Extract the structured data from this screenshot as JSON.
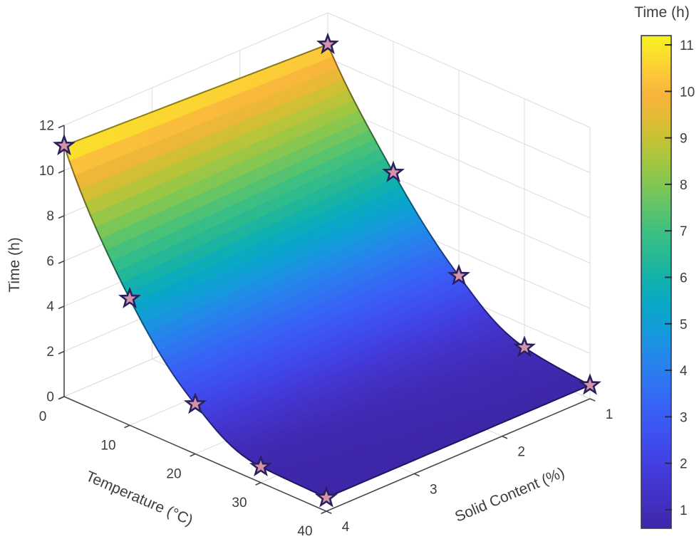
{
  "chart_data": {
    "type": "surface3d",
    "title": "",
    "xlabel": "Temperature (°C)",
    "ylabel": "Solid Content (%)",
    "zlabel": "Time (h)",
    "colorbar_title": "Time (h)",
    "x_range": [
      0,
      40
    ],
    "y_range": [
      1,
      4
    ],
    "z_range": [
      0,
      12
    ],
    "x_ticks": [
      0,
      10,
      20,
      30,
      40
    ],
    "y_ticks": [
      4,
      3,
      2,
      1
    ],
    "z_ticks": [
      0,
      2,
      4,
      6,
      8,
      10,
      12
    ],
    "colorbar_ticks": [
      1,
      2,
      3,
      4,
      5,
      6,
      7,
      8,
      9,
      10,
      11
    ],
    "color_limits": [
      0.6,
      11.2
    ],
    "grid": true,
    "legend_position": "colorbar-right",
    "temperature": [
      0,
      10,
      20,
      30,
      40
    ],
    "series": [
      {
        "name": "solid_content_4",
        "solid_content": 4,
        "time_h": [
          11.1,
          5.6,
          2.2,
          0.7,
          0.6
        ]
      },
      {
        "name": "solid_content_1",
        "solid_content": 1,
        "time_h": [
          10.6,
          6.2,
          2.9,
          1.0,
          0.6
        ]
      }
    ],
    "marker": {
      "shape": "pentagram",
      "fill": "#d593aa",
      "edge": "#2a2060"
    },
    "colormap": "parula",
    "colormap_stops": [
      [
        0.0,
        "#3e26a8"
      ],
      [
        0.05,
        "#432fc0"
      ],
      [
        0.1,
        "#4338d5"
      ],
      [
        0.15,
        "#4145e7"
      ],
      [
        0.2,
        "#3d54f3"
      ],
      [
        0.25,
        "#3764f5"
      ],
      [
        0.3,
        "#2e76f0"
      ],
      [
        0.35,
        "#2488ea"
      ],
      [
        0.4,
        "#149bdb"
      ],
      [
        0.45,
        "#09a7c8"
      ],
      [
        0.5,
        "#10b0b0"
      ],
      [
        0.55,
        "#26b894"
      ],
      [
        0.6,
        "#3cbf83"
      ],
      [
        0.65,
        "#5ec46a"
      ],
      [
        0.7,
        "#84c751"
      ],
      [
        0.75,
        "#a8c63f"
      ],
      [
        0.8,
        "#cbc134"
      ],
      [
        0.84,
        "#e7ba35"
      ],
      [
        0.88,
        "#f8b43c"
      ],
      [
        0.92,
        "#fcc63a"
      ],
      [
        0.96,
        "#fbde2d"
      ],
      [
        1.0,
        "#f6f21c"
      ]
    ],
    "axis_color": "#46464e",
    "grid_color": "#dcdcdc",
    "label_color": "#3d3d3d"
  }
}
